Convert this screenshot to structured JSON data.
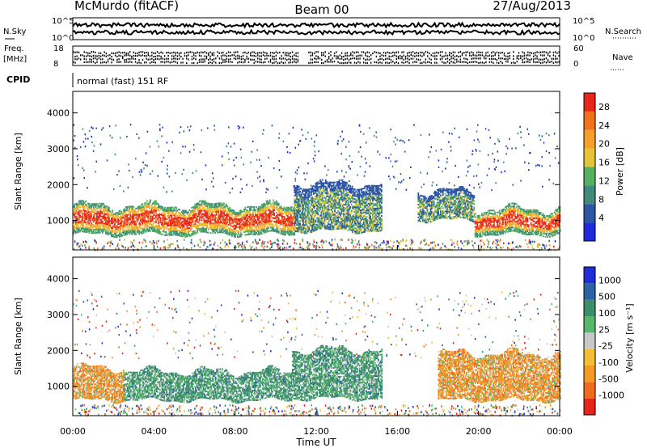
{
  "header": {
    "title": "McMurdo (fitACF)",
    "beam": "Beam 00",
    "date": "27/Aug/2013"
  },
  "noise_panel": {
    "left_label": "N.Sky",
    "right_label": "N.Search",
    "left_ticks": [
      "10^5",
      "10^0"
    ],
    "right_ticks": [
      "10^5",
      "10^0"
    ]
  },
  "freq_panel": {
    "left_label_line1": "Freq.",
    "left_label_line2": "[MHz]",
    "right_label": "Nave",
    "left_ticks": [
      "18",
      "8"
    ],
    "right_ticks": [
      "60",
      "0"
    ]
  },
  "cpid": {
    "label": "CPID",
    "value": "normal (fast) 151 RF"
  },
  "x_axis": {
    "label": "Time UT",
    "ticks": [
      "00:00",
      "04:00",
      "08:00",
      "12:00",
      "16:00",
      "20:00",
      "00:00"
    ]
  },
  "colors": {
    "power_scale": [
      "#1f2bd8",
      "#2c55a3",
      "#3f8a79",
      "#56b062",
      "#e6c43a",
      "#f5a02a",
      "#f2711d",
      "#e8261c"
    ],
    "velocity_scale": [
      "#e8231c",
      "#f06a1f",
      "#f39a25",
      "#f5bd32",
      "#c8c8c8",
      "#55b86a",
      "#3e8e6c",
      "#2d62a4",
      "#1f2dd6"
    ]
  },
  "chart_data": [
    {
      "type": "heatmap",
      "title": "",
      "xlabel": "Time UT",
      "ylabel": "Slant Range [km]",
      "x_range_hours": [
        0,
        24
      ],
      "ylim": [
        180,
        4600
      ],
      "yticks": [
        "1000",
        "2000",
        "3000",
        "4000"
      ],
      "yticks_values": [
        1000,
        2000,
        3000,
        4000
      ],
      "colorbar": {
        "label": "Power [dB]",
        "ticks": [
          "4",
          "8",
          "12",
          "16",
          "20",
          "24",
          "28"
        ],
        "tick_values": [
          4,
          8,
          12,
          16,
          20,
          24,
          28
        ],
        "range": [
          0,
          30
        ]
      },
      "scatter_bands": [
        {
          "t_start": 0.0,
          "t_end": 10.9,
          "r_low": 600,
          "r_high": 1400,
          "level": "high"
        },
        {
          "t_start": 10.9,
          "t_end": 15.2,
          "r_low": 700,
          "r_high": 2000,
          "level": "medium"
        },
        {
          "t_start": 17.0,
          "t_end": 19.8,
          "r_low": 1000,
          "r_high": 1800,
          "level": "medium"
        },
        {
          "t_start": 19.8,
          "t_end": 24.0,
          "r_low": 600,
          "r_high": 1300,
          "level": "high"
        }
      ]
    },
    {
      "type": "heatmap",
      "title": "",
      "xlabel": "Time UT",
      "ylabel": "Slant Range [km]",
      "x_range_hours": [
        0,
        24
      ],
      "ylim": [
        180,
        4600
      ],
      "yticks": [
        "1000",
        "2000",
        "3000",
        "4000"
      ],
      "yticks_values": [
        1000,
        2000,
        3000,
        4000
      ],
      "colorbar": {
        "label": "Velocity [m s⁻¹]",
        "ticks": [
          "1000",
          "500",
          "100",
          "25",
          "-25",
          "-100",
          "-500",
          "-1000"
        ],
        "tick_values": [
          1000,
          500,
          100,
          25,
          -25,
          -100,
          -500,
          -1000
        ]
      },
      "scatter_bands": [
        {
          "t_start": 0.0,
          "t_end": 2.5,
          "r_low": 600,
          "r_high": 1500,
          "velocity": "away"
        },
        {
          "t_start": 2.5,
          "t_end": 10.8,
          "r_low": 600,
          "r_high": 1400,
          "velocity": "toward"
        },
        {
          "t_start": 10.8,
          "t_end": 15.2,
          "r_low": 650,
          "r_high": 2000,
          "velocity": "toward"
        },
        {
          "t_start": 18.0,
          "t_end": 24.0,
          "r_low": 600,
          "r_high": 1900,
          "velocity": "away"
        }
      ]
    }
  ]
}
